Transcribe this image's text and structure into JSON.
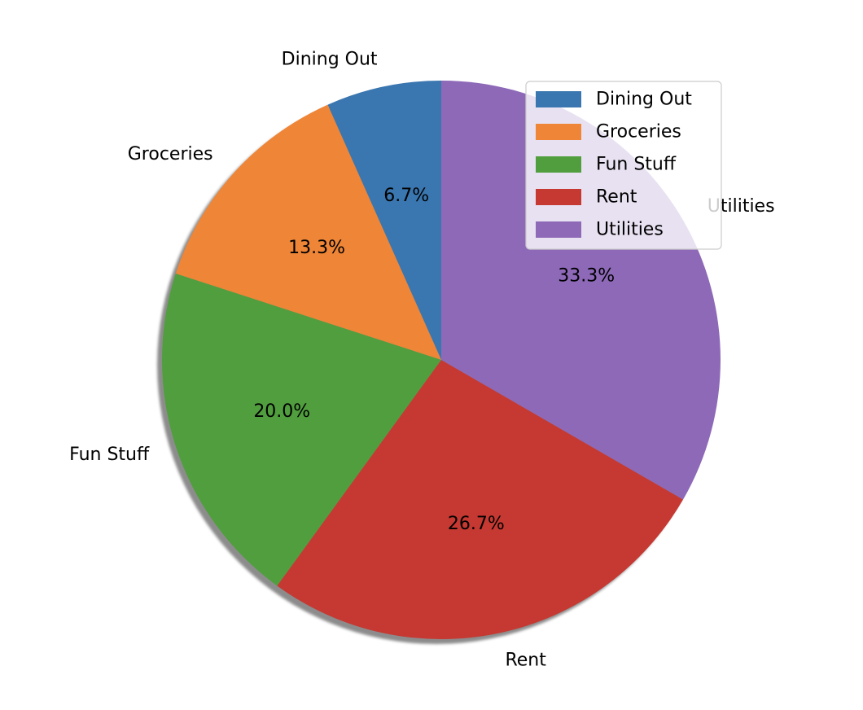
{
  "chart_data": {
    "type": "pie",
    "categories": [
      "Dining Out",
      "Groceries",
      "Fun Stuff",
      "Rent",
      "Utilities"
    ],
    "values": [
      50,
      100,
      150,
      200,
      250
    ],
    "percent_labels": [
      "6.7%",
      "13.3%",
      "20.0%",
      "26.7%",
      "33.3%"
    ],
    "colors": [
      "#3a76af",
      "#ef8536",
      "#519e3e",
      "#c53932",
      "#8d69b8"
    ],
    "start_angle_deg": 90,
    "direction": "counterclockwise",
    "shadow": true,
    "legend": {
      "position": "top-right",
      "entries": [
        "Dining Out",
        "Groceries",
        "Fun Stuff",
        "Rent",
        "Utilities"
      ]
    }
  }
}
